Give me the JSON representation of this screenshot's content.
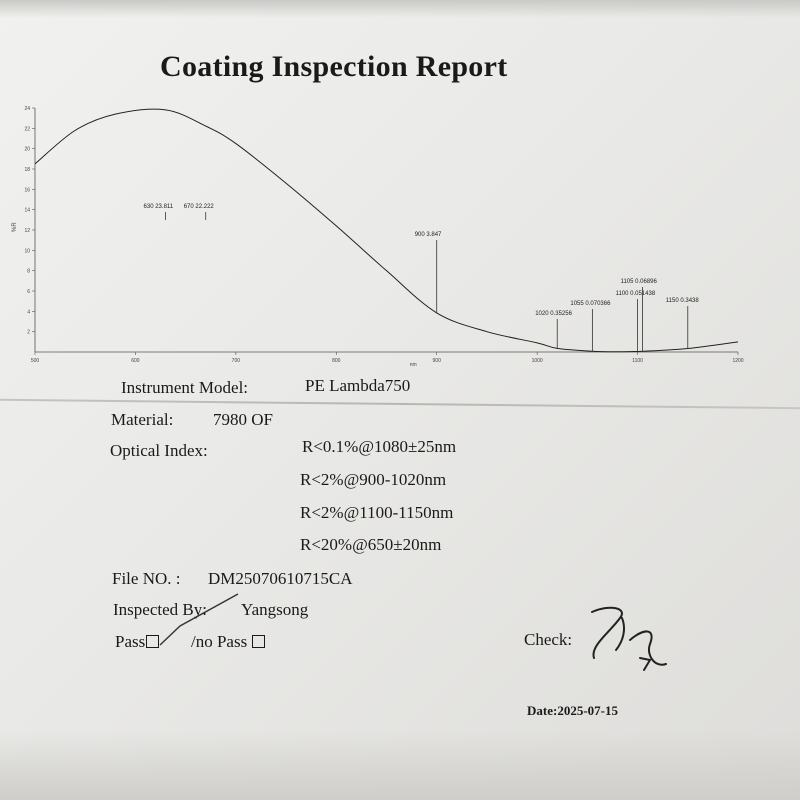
{
  "title": "Coating Inspection Report",
  "chart_data": {
    "type": "line",
    "xlabel": "nm",
    "ylabel": "%R",
    "xlim": [
      500,
      1200
    ],
    "ylim": [
      0,
      24
    ],
    "x_ticks": [
      "500",
      "600",
      "700",
      "800",
      "900",
      "1000",
      "1100",
      "1200"
    ],
    "y_ticks": [
      "24",
      "22",
      "20",
      "18",
      "16",
      "14",
      "12",
      "10",
      "8",
      "6",
      "4",
      "2"
    ],
    "series": [
      {
        "x": [
          500,
          540,
          580,
          630,
          670,
          700,
          750,
          800,
          850,
          900,
          950,
          1000,
          1020,
          1055,
          1080,
          1100,
          1105,
          1150,
          1200
        ],
        "values": [
          18.5,
          21.8,
          23.4,
          23.811,
          22.222,
          20.5,
          16.6,
          12.4,
          8.0,
          3.847,
          2.0,
          0.9,
          0.35256,
          0.070366,
          0.02,
          0.051438,
          0.06896,
          0.3438,
          1.0
        ]
      }
    ],
    "annotations": [
      {
        "label": "630  23.811",
        "x": 630,
        "y": 23.811
      },
      {
        "label": "670  22.222",
        "x": 670,
        "y": 22.222
      },
      {
        "label": "900  3.847",
        "x": 900,
        "y": 3.847
      },
      {
        "label": "1020  0.35256",
        "x": 1020,
        "y": 0.35256
      },
      {
        "label": "1055  0.070366",
        "x": 1055,
        "y": 0.070366
      },
      {
        "label": "1100  0.051438",
        "x": 1100,
        "y": 0.051438
      },
      {
        "label": "1105  0.06896",
        "x": 1105,
        "y": 0.06896
      },
      {
        "label": "1150  0.3438",
        "x": 1150,
        "y": 0.3438
      }
    ],
    "grid": false
  },
  "fields": {
    "instrument_label": "Instrument Model:",
    "instrument_value": "PE Lambda750",
    "material_label": "Material:",
    "material_value": "7980 OF",
    "optical_label": "Optical Index:",
    "optical_values": [
      "R<0.1%@1080±25nm",
      "R<2%@900-1020nm",
      "R<2%@1100-1150nm",
      "R<20%@650±20nm"
    ],
    "file_label": "File NO. :",
    "file_value": "DM25070610715CA",
    "inspected_label": "Inspected By:",
    "inspected_value": "Yangsong",
    "pass_label": "Pass",
    "nopass_label": "/no Pass",
    "check_label": "Check:",
    "date_text": "Date:2025-07-15"
  }
}
